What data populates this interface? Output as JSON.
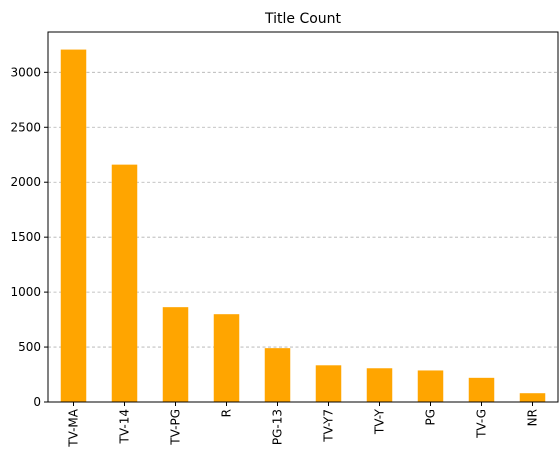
{
  "chart_data": {
    "type": "bar",
    "title": "Title Count",
    "xlabel": "",
    "ylabel": "",
    "categories": [
      "TV-MA",
      "TV-14",
      "TV-PG",
      "R",
      "PG-13",
      "TV-Y7",
      "TV-Y",
      "PG",
      "TV-G",
      "NR"
    ],
    "values": [
      3207,
      2160,
      863,
      799,
      490,
      334,
      307,
      287,
      220,
      80
    ],
    "ylim": [
      0,
      3367
    ],
    "yticks": [
      0,
      500,
      1000,
      1500,
      2000,
      2500,
      3000
    ],
    "grid": "y-dashed",
    "legend": "none",
    "bar_color": "#FFA500"
  }
}
